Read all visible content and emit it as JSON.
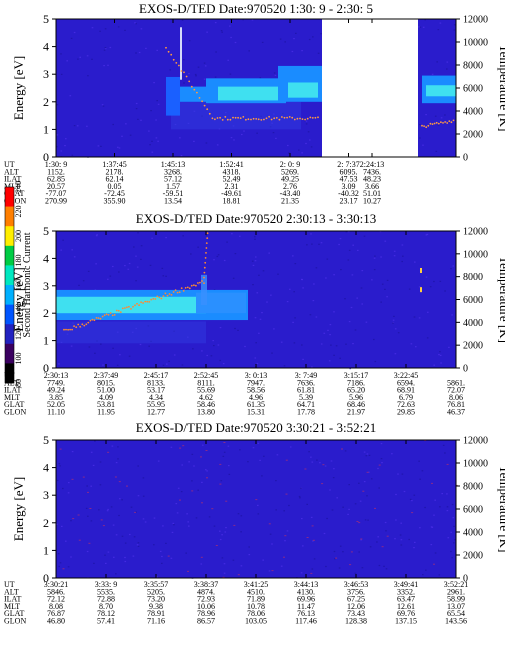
{
  "instrument": "EXOS-D/TED",
  "colorbar": {
    "label": "Second Harmonic Current",
    "ticks": [
      "80",
      "100",
      "120",
      "140",
      "160",
      "180",
      "200",
      "220",
      "240"
    ],
    "colors": [
      "#000000",
      "#3a0060",
      "#2222c0",
      "#0055ff",
      "#00b0ff",
      "#00e8c0",
      "#00cc44",
      "#ffee00",
      "#ff7f00",
      "#ff0000"
    ]
  },
  "axes": {
    "ylabel_left": "Energy [eV]",
    "ylabel_right": "Temperature [K]",
    "ylim": [
      0,
      5
    ],
    "yticks": [
      "0",
      "1",
      "2",
      "3",
      "4",
      "5"
    ],
    "ylim_right": [
      0,
      12000
    ],
    "yticks_right": [
      "0",
      "2000",
      "4000",
      "6000",
      "8000",
      "10000",
      "12000"
    ],
    "row_labels": [
      "UT",
      "ALT",
      "ILAT",
      "MLT",
      "GLAT",
      "GLON"
    ]
  },
  "chart_data": [
    {
      "type": "heatmap",
      "title": "EXOS-D/TED    Date:970520   1:30: 9 - 2:30: 5",
      "data_gaps": [
        {
          "from": "2: 7:37",
          "to_fraction": 0.71
        },
        {
          "from_fraction": 0.85,
          "to_fraction": 0.88
        }
      ],
      "band": {
        "center_ev": [
          null,
          null,
          2.0,
          2.2,
          2.4,
          2.5,
          2.6
        ],
        "note": ""
      },
      "columns": [
        {
          "UT": "1:30: 9",
          "ALT": "1152.",
          "ILAT": "62.85",
          "MLT": "20.57",
          "GLAT": "-77.07",
          "GLON": "270.99"
        },
        {
          "UT": "1:37:45",
          "ALT": "2178.",
          "ILAT": "62.14",
          "MLT": "0.05",
          "GLAT": "-72.45",
          "GLON": "355.90"
        },
        {
          "UT": "1:45:13",
          "ALT": "3268.",
          "ILAT": "57.12",
          "MLT": "1.57",
          "GLAT": "-59.51",
          "GLON": "13.54"
        },
        {
          "UT": "1:52:41",
          "ALT": "4318.",
          "ILAT": "52.49",
          "MLT": "2.31",
          "GLAT": "-49.61",
          "GLON": "18.81"
        },
        {
          "UT": "2: 0: 9",
          "ALT": "5269.",
          "ILAT": "49.25",
          "MLT": "2.76",
          "GLAT": "-43.40",
          "GLON": "21.35"
        },
        {
          "UT": "2: 7:37",
          "ALT": "6095.",
          "ILAT": "47.53",
          "MLT": "3.09",
          "GLAT": "-40.32",
          "GLON": "23.17"
        },
        {
          "UT": "2:24:13",
          "ALT": "7436.",
          "ILAT": "48.23",
          "MLT": "3.66",
          "GLAT": "51.01",
          "GLON": "10.27"
        }
      ]
    },
    {
      "type": "heatmap",
      "title": "EXOS-D/TED    Date:970520   2:30:13 - 3:30:13",
      "columns": [
        {
          "UT": "2:30:13",
          "ALT": "7749.",
          "ILAT": "49.24",
          "MLT": "3.85",
          "GLAT": "52.05",
          "GLON": "11.10"
        },
        {
          "UT": "2:37:49",
          "ALT": "8015.",
          "ILAT": "51.00",
          "MLT": "4.09",
          "GLAT": "53.81",
          "GLON": "11.95"
        },
        {
          "UT": "2:45:17",
          "ALT": "8133.",
          "ILAT": "53.17",
          "MLT": "4.34",
          "GLAT": "55.95",
          "GLON": "12.77"
        },
        {
          "UT": "2:52:45",
          "ALT": "8111.",
          "ILAT": "55.69",
          "MLT": "4.62",
          "GLAT": "58.46",
          "GLON": "13.80"
        },
        {
          "UT": "3: 0:13",
          "ALT": "7947.",
          "ILAT": "58.56",
          "MLT": "4.96",
          "GLAT": "61.35",
          "GLON": "15.31"
        },
        {
          "UT": "3: 7:49",
          "ALT": "7636.",
          "ILAT": "61.81",
          "MLT": "5.39",
          "GLAT": "64.71",
          "GLON": "17.78"
        },
        {
          "UT": "3:15:17",
          "ALT": "7186.",
          "ILAT": "65.20",
          "MLT": "5.96",
          "GLAT": "68.46",
          "GLON": "21.97"
        },
        {
          "UT": "3:22:45",
          "ALT": "6594.",
          "ILAT": "68.91",
          "MLT": "6.79",
          "GLAT": "72.63",
          "GLON": "29.85"
        },
        {
          "UT": "",
          "ALT": "5861.",
          "ILAT": "72.07",
          "MLT": "8.06",
          "GLAT": "76.81",
          "GLON": "46.37"
        }
      ]
    },
    {
      "type": "heatmap",
      "title": "EXOS-D/TED    Date:970520   3:30:21 - 3:52:21",
      "columns": [
        {
          "UT": "3:30:21",
          "ALT": "5846.",
          "ILAT": "72.12",
          "MLT": "8.08",
          "GLAT": "76.87",
          "GLON": "46.80"
        },
        {
          "UT": "3:33: 9",
          "ALT": "5535.",
          "ILAT": "72.88",
          "MLT": "8.70",
          "GLAT": "78.12",
          "GLON": "57.41"
        },
        {
          "UT": "3:35:57",
          "ALT": "5205.",
          "ILAT": "73.20",
          "MLT": "9.38",
          "GLAT": "78.91",
          "GLON": "71.16"
        },
        {
          "UT": "3:38:37",
          "ALT": "4874.",
          "ILAT": "72.93",
          "MLT": "10.06",
          "GLAT": "78.96",
          "GLON": "86.57"
        },
        {
          "UT": "3:41:25",
          "ALT": "4510.",
          "ILAT": "71.89",
          "MLT": "10.78",
          "GLAT": "78.06",
          "GLON": "103.05"
        },
        {
          "UT": "3:44:13",
          "ALT": "4130.",
          "ILAT": "69.96",
          "MLT": "11.47",
          "GLAT": "76.13",
          "GLON": "117.46"
        },
        {
          "UT": "3:46:53",
          "ALT": "3756.",
          "ILAT": "67.25",
          "MLT": "12.06",
          "GLAT": "73.43",
          "GLON": "128.38"
        },
        {
          "UT": "3:49:41",
          "ALT": "3352.",
          "ILAT": "63.47",
          "MLT": "12.61",
          "GLAT": "69.76",
          "GLON": "137.15"
        },
        {
          "UT": "3:52:21",
          "ALT": "2961.",
          "ILAT": "58.99",
          "MLT": "13.07",
          "GLAT": "65.54",
          "GLON": "143.56"
        }
      ]
    }
  ]
}
